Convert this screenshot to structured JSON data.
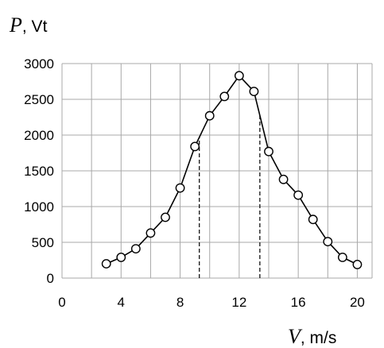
{
  "chart_data": {
    "type": "line",
    "title": "",
    "ylabel": {
      "var": "P",
      "unit": ", Vt"
    },
    "xlabel": {
      "var": "V",
      "unit": ", m/s"
    },
    "xlim": [
      0,
      21
    ],
    "ylim": [
      0,
      3000
    ],
    "x_ticks": [
      0,
      4,
      8,
      12,
      16,
      20
    ],
    "y_ticks": [
      0,
      500,
      1000,
      1500,
      2000,
      2500,
      3000
    ],
    "grid": true,
    "series": [
      {
        "x": [
          3,
          4,
          5,
          6,
          7,
          8,
          9,
          10,
          11,
          12,
          13,
          14,
          15,
          16,
          17,
          18,
          19,
          20
        ],
        "y": [
          200,
          290,
          410,
          630,
          850,
          1260,
          1840,
          2270,
          2540,
          2830,
          2610,
          1770,
          1380,
          1160,
          820,
          510,
          290,
          190
        ]
      }
    ],
    "reference_lines_x": [
      9.3,
      13.4
    ]
  }
}
